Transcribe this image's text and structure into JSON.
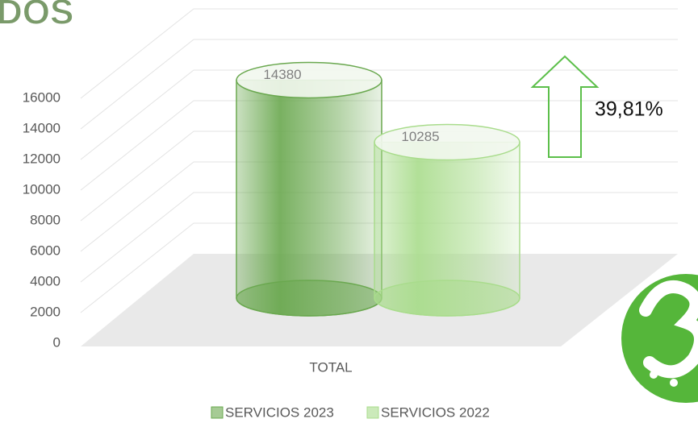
{
  "header_fragment": "DOS",
  "chart_data": {
    "type": "cylinder",
    "categories": [
      "TOTAL"
    ],
    "series": [
      {
        "name": "SERVICIOS 2023",
        "color": "#6aa84f",
        "values": [
          14380
        ]
      },
      {
        "name": "SERVICIOS 2022",
        "color": "#a9dc8c",
        "values": [
          10285
        ]
      }
    ],
    "ylim": [
      0,
      16000
    ],
    "yticks": [
      0,
      2000,
      4000,
      6000,
      8000,
      10000,
      12000,
      14000,
      16000
    ],
    "grid": true,
    "legend": "bottom",
    "annotation": "39,81%"
  }
}
